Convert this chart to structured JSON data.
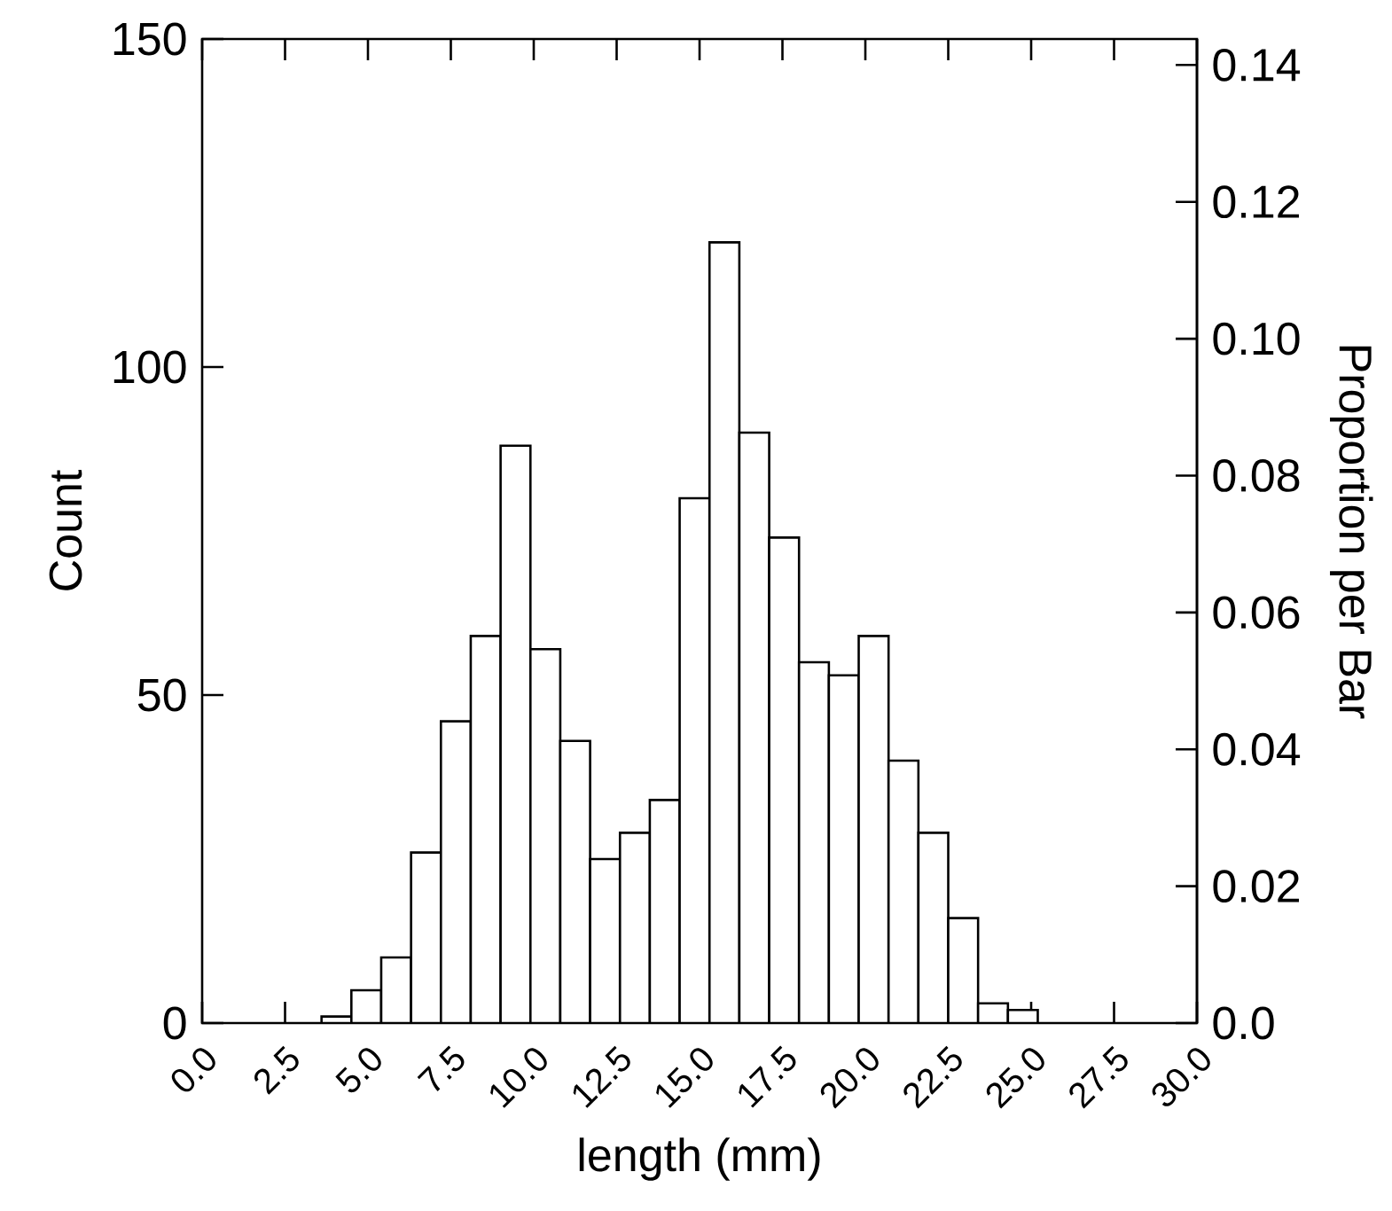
{
  "chart_data": {
    "type": "histogram",
    "xlabel": "length (mm)",
    "ylabel": "Count",
    "y2label": "Proportion per Bar",
    "bins": [
      3.6,
      4.5,
      5.4,
      6.3,
      7.2,
      8.1,
      9.0,
      9.9,
      10.8,
      11.7,
      12.6,
      13.5,
      14.4,
      15.3,
      16.2,
      17.1,
      18.0,
      18.9,
      19.8,
      20.7,
      21.6,
      22.5,
      23.4,
      24.3,
      25.2
    ],
    "values": [
      1,
      5,
      10,
      26,
      46,
      59,
      88,
      57,
      43,
      25,
      29,
      34,
      80,
      119,
      90,
      74,
      55,
      53,
      59,
      40,
      29,
      16,
      3,
      2
    ],
    "xlim": [
      0,
      30
    ],
    "xticks": [
      {
        "value": 0,
        "label": "0.0"
      },
      2.5,
      {
        "value": 5,
        "label": "5.0"
      },
      7.5,
      {
        "value": 10,
        "label": "10.0"
      },
      12.5,
      {
        "value": 15,
        "label": "15.0"
      },
      17.5,
      {
        "value": 20,
        "label": "20.0"
      },
      22.5,
      {
        "value": 25,
        "label": "25.0"
      },
      27.5,
      {
        "value": 30,
        "label": "30.0"
      }
    ],
    "ylim": [
      0,
      150
    ],
    "yticks": [
      0,
      50,
      100,
      150
    ],
    "y2lim": [
      0,
      0.1438
    ],
    "y2ticks": [
      {
        "value": 0,
        "label": "0.0"
      },
      0.02,
      0.04,
      0.06,
      0.08,
      {
        "value": 0.1,
        "label": "0.10"
      },
      0.12,
      0.14
    ]
  }
}
